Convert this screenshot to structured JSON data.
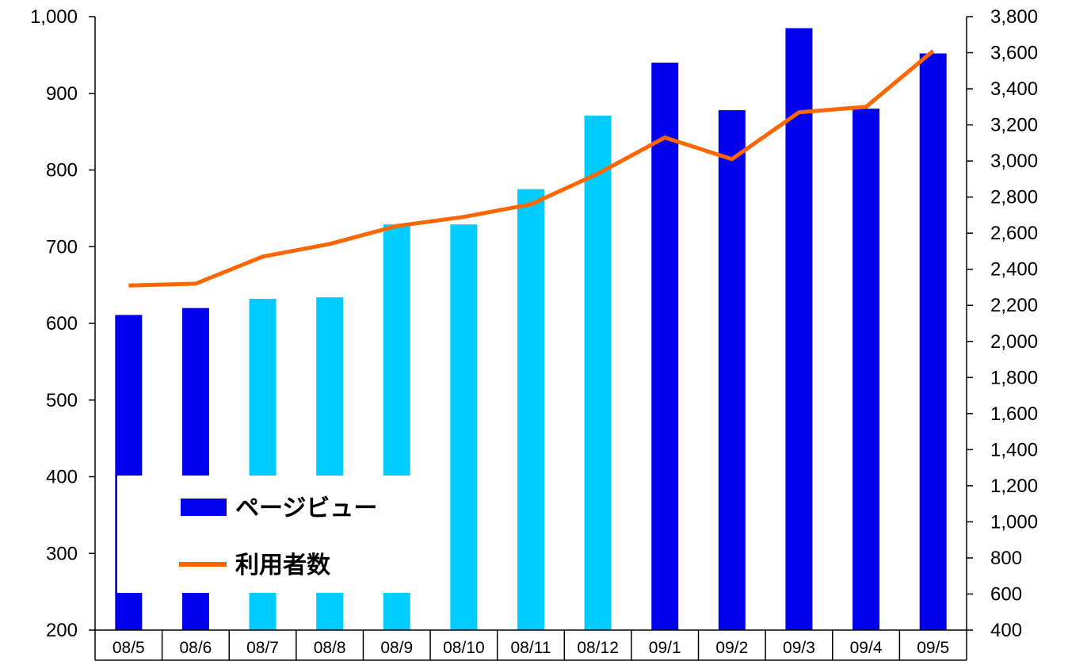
{
  "chart_data": {
    "type": "bar",
    "categories": [
      "08/5",
      "08/6",
      "08/7",
      "08/8",
      "08/9",
      "08/10",
      "08/11",
      "08/12",
      "09/1",
      "09/2",
      "09/3",
      "09/4",
      "09/5"
    ],
    "series": [
      {
        "name": "ページビュー",
        "type": "bar",
        "axis": "left",
        "values": [
          611,
          620,
          632,
          634,
          729,
          729,
          775,
          871,
          940,
          878,
          985,
          880,
          952
        ],
        "bar_colors": [
          "#0000ee",
          "#0000ee",
          "#00ccff",
          "#00ccff",
          "#00ccff",
          "#00ccff",
          "#00ccff",
          "#00ccff",
          "#0000ee",
          "#0000ee",
          "#0000ee",
          "#0000ee",
          "#0000ee"
        ]
      },
      {
        "name": "利用者数",
        "type": "line",
        "axis": "right",
        "color": "#ff6600",
        "values": [
          2310,
          2320,
          2470,
          2540,
          2640,
          2690,
          2760,
          2930,
          3130,
          3010,
          3270,
          3300,
          3610
        ]
      }
    ],
    "y_left": {
      "min": 200,
      "max": 1000,
      "ticks": [
        200,
        300,
        400,
        500,
        600,
        700,
        800,
        900,
        1000
      ],
      "tick_labels": [
        "200",
        "300",
        "400",
        "500",
        "600",
        "700",
        "800",
        "900",
        "1,000"
      ]
    },
    "y_right": {
      "min": 400,
      "max": 3800,
      "ticks": [
        400,
        600,
        800,
        1000,
        1200,
        1400,
        1600,
        1800,
        2000,
        2200,
        2400,
        2600,
        2800,
        3000,
        3200,
        3400,
        3600,
        3800
      ],
      "tick_labels": [
        "400",
        "600",
        "800",
        "1,000",
        "1,200",
        "1,400",
        "1,600",
        "1,800",
        "2,000",
        "2,200",
        "2,400",
        "2,600",
        "2,800",
        "3,000",
        "3,200",
        "3,400",
        "3,600",
        "3,800"
      ]
    },
    "grid": false,
    "legend": {
      "position": "inside-bottom-left",
      "entries": [
        {
          "label": "ページビュー",
          "marker": "bar",
          "color": "#0000ee"
        },
        {
          "label": "利用者数",
          "marker": "line",
          "color": "#ff6600"
        }
      ]
    },
    "title": "",
    "xlabel": "",
    "ylabel": ""
  }
}
